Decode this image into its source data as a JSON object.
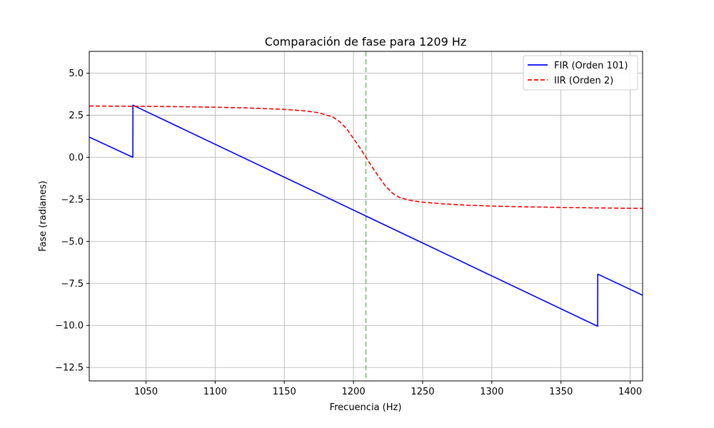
{
  "chart_data": {
    "type": "line",
    "title": "Comparación de fase para 1209 Hz",
    "xlabel": "Frecuencia (Hz)",
    "ylabel": "Fase (radianes)",
    "xlim": [
      1009,
      1409
    ],
    "ylim": [
      -13.3,
      6.3
    ],
    "xticks": [
      1050,
      1100,
      1150,
      1200,
      1250,
      1300,
      1350,
      1400
    ],
    "yticks": [
      5.0,
      2.5,
      0.0,
      -2.5,
      -5.0,
      -7.5,
      -10.0,
      -12.5
    ],
    "xtick_labels": [
      "1050",
      "1100",
      "1150",
      "1200",
      "1250",
      "1300",
      "1350",
      "1400"
    ],
    "ytick_labels": [
      "5.0",
      "2.5",
      "0.0",
      "−2.5",
      "−5.0",
      "−7.5",
      "−10.0",
      "−12.5"
    ],
    "grid": true,
    "legend_position": "top-right",
    "vline": {
      "x": 1209,
      "color": "#4daf4a",
      "style": "dashed"
    },
    "series": [
      {
        "name": "FIR (Orden 101)",
        "color": "#0000ff",
        "style": "solid",
        "points": [
          [
            1009,
            1.2
          ],
          [
            1040.5,
            0.0
          ],
          [
            1040.6,
            3.1
          ],
          [
            1376.5,
            -10.05
          ],
          [
            1376.6,
            -6.95
          ],
          [
            1409,
            -8.2
          ]
        ]
      },
      {
        "name": "IIR (Orden 2)",
        "color": "#ff0000",
        "style": "dashed",
        "points": [
          [
            1009,
            3.05
          ],
          [
            1030,
            3.04
          ],
          [
            1050,
            3.03
          ],
          [
            1075,
            3.01
          ],
          [
            1100,
            2.98
          ],
          [
            1125,
            2.93
          ],
          [
            1150,
            2.85
          ],
          [
            1165,
            2.76
          ],
          [
            1175,
            2.65
          ],
          [
            1185,
            2.4
          ],
          [
            1190,
            2.12
          ],
          [
            1195,
            1.7
          ],
          [
            1200,
            1.12
          ],
          [
            1205,
            0.52
          ],
          [
            1209,
            0.0
          ],
          [
            1213,
            -0.52
          ],
          [
            1218,
            -1.12
          ],
          [
            1223,
            -1.7
          ],
          [
            1228,
            -2.12
          ],
          [
            1233,
            -2.38
          ],
          [
            1240,
            -2.55
          ],
          [
            1250,
            -2.67
          ],
          [
            1265,
            -2.77
          ],
          [
            1280,
            -2.84
          ],
          [
            1300,
            -2.9
          ],
          [
            1325,
            -2.95
          ],
          [
            1350,
            -2.98
          ],
          [
            1375,
            -3.01
          ],
          [
            1409,
            -3.04
          ]
        ]
      }
    ]
  }
}
